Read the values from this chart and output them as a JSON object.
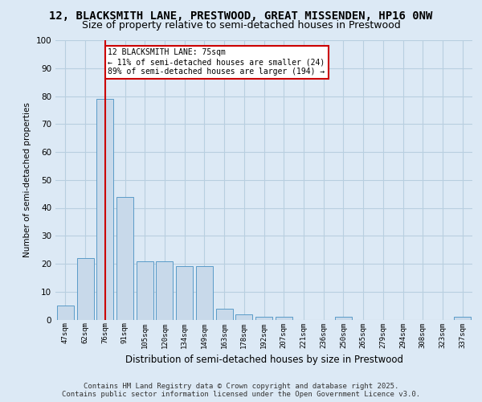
{
  "title_line1": "12, BLACKSMITH LANE, PRESTWOOD, GREAT MISSENDEN, HP16 0NW",
  "title_line2": "Size of property relative to semi-detached houses in Prestwood",
  "xlabel": "Distribution of semi-detached houses by size in Prestwood",
  "ylabel": "Number of semi-detached properties",
  "categories": [
    "47sqm",
    "62sqm",
    "76sqm",
    "91sqm",
    "105sqm",
    "120sqm",
    "134sqm",
    "149sqm",
    "163sqm",
    "178sqm",
    "192sqm",
    "207sqm",
    "221sqm",
    "236sqm",
    "250sqm",
    "265sqm",
    "279sqm",
    "294sqm",
    "308sqm",
    "323sqm",
    "337sqm"
  ],
  "values": [
    5,
    22,
    79,
    44,
    21,
    21,
    19,
    19,
    4,
    2,
    1,
    1,
    0,
    0,
    1,
    0,
    0,
    0,
    0,
    0,
    1
  ],
  "bar_color": "#c8d9ea",
  "bar_edge_color": "#5a9bc8",
  "grid_color": "#b8cfe0",
  "vline_x": 2,
  "vline_color": "#cc0000",
  "annotation_text": "12 BLACKSMITH LANE: 75sqm\n← 11% of semi-detached houses are smaller (24)\n89% of semi-detached houses are larger (194) →",
  "annotation_box_edge": "#cc0000",
  "footnote_line1": "Contains HM Land Registry data © Crown copyright and database right 2025.",
  "footnote_line2": "Contains public sector information licensed under the Open Government Licence v3.0.",
  "ylim": [
    0,
    100
  ],
  "yticks": [
    0,
    10,
    20,
    30,
    40,
    50,
    60,
    70,
    80,
    90,
    100
  ],
  "bg_color": "#dce9f5",
  "title_fontsize": 10,
  "subtitle_fontsize": 9,
  "footnote_fontsize": 6.5
}
